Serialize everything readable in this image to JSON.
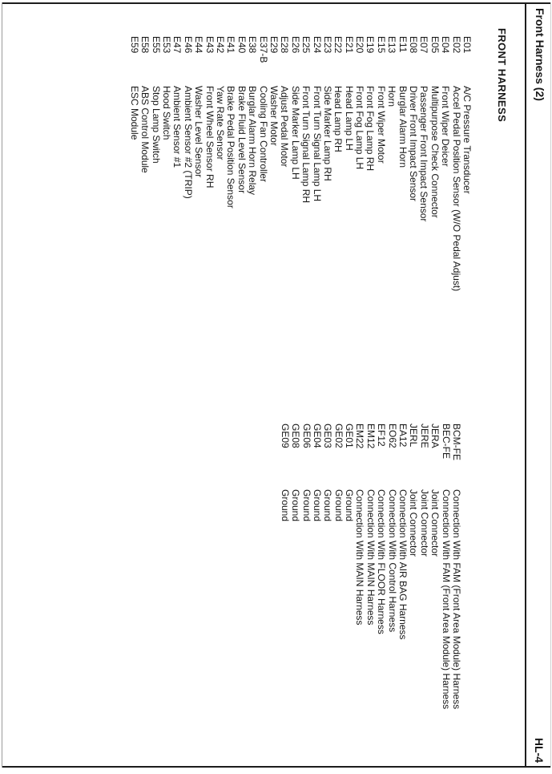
{
  "header": {
    "title": "Front Harness (2)",
    "page_number": "HL-4"
  },
  "content": {
    "section_title": "FRONT HARNESS",
    "front_harness_rows": [
      {
        "code": "E01",
        "name": "A/C Pressure Transducer"
      },
      {
        "code": "E02",
        "name": "Accel Pedal Position Sensor (W/O Pedal Adjust)"
      },
      {
        "code": "E04",
        "name": "Front Wiper Deicer"
      },
      {
        "code": "E05",
        "name": "Multipurpose Check Connector"
      },
      {
        "code": "E07",
        "name": "Passenger Front Impact Sensor"
      },
      {
        "code": "E08",
        "name": "Driver Front Impact Sensor"
      },
      {
        "code": "E11",
        "name": "Burglar Alarm Horn"
      },
      {
        "code": "E13",
        "name": "Horn"
      },
      {
        "code": "E15",
        "name": "Front Wiper Motor"
      },
      {
        "code": "E19",
        "name": "Front Fog Lamp RH"
      },
      {
        "code": "E20",
        "name": "Front Fog Lamp LH"
      },
      {
        "code": "E21",
        "name": "Head Lamp LH"
      },
      {
        "code": "E22",
        "name": "Head Lamp RH"
      },
      {
        "code": "E23",
        "name": "Side Marker Lamp RH"
      },
      {
        "code": "E24",
        "name": "Front Turn Signal Lamp LH"
      },
      {
        "code": "E25",
        "name": "Front Turn Signal Lamp RH"
      },
      {
        "code": "E26",
        "name": "Side Marker Lamp LH"
      },
      {
        "code": "E28",
        "name": "Adjust Pedal Motor"
      },
      {
        "code": "E29",
        "name": "Washer Motor"
      },
      {
        "code": "E37-B",
        "name": "Cooling Fan Controller"
      },
      {
        "code": "E38",
        "name": "Burglar Alarm Horn Relay"
      },
      {
        "code": "E40",
        "name": "Brake Fluid Level Sensor"
      },
      {
        "code": "E41",
        "name": "Brake Pedal Position Sensor"
      },
      {
        "code": "E42",
        "name": "Yaw Rate Sensor"
      },
      {
        "code": "E43",
        "name": "Front Wheel Sensor RH"
      },
      {
        "code": "E44",
        "name": "Washer Level Sensor"
      },
      {
        "code": "E46",
        "name": "Ambient Sensor #2 (TRIP)"
      },
      {
        "code": "E47",
        "name": "Ambient Sensor #1"
      },
      {
        "code": "E53",
        "name": "Hood Switch"
      },
      {
        "code": "E55",
        "name": "Stop Lamp Switch"
      },
      {
        "code": "E58",
        "name": "ABS Control Module"
      },
      {
        "code": "E59",
        "name": "ESC Module"
      }
    ],
    "connection_rows": [
      {
        "code": "BCM-FE",
        "name": "Connection With FAM (Front Area Module) Harness"
      },
      {
        "code": "BEC-FE",
        "name": "Connection With FAM (Front Area Module) Harness"
      },
      {
        "code": "JERA",
        "name": "Joint Connector"
      },
      {
        "code": "JERE",
        "name": "Joint Connector"
      },
      {
        "code": "JERL",
        "name": "Joint Connector"
      },
      {
        "code": "EA12",
        "name": "Connection With AIR BAG Harness"
      },
      {
        "code": "EO62",
        "name": "Connection With Control Harness"
      },
      {
        "code": "EF12",
        "name": "Connection With FLOOR Harness"
      },
      {
        "code": "EM12",
        "name": "Connection With MAIN Harness"
      },
      {
        "code": "EM22",
        "name": "Connection With MAIN Harness"
      },
      {
        "code": "GE01",
        "name": "Ground"
      },
      {
        "code": "GE02",
        "name": "Ground"
      },
      {
        "code": "GE03",
        "name": "Ground"
      },
      {
        "code": "GE04",
        "name": "Ground"
      },
      {
        "code": "GE06",
        "name": "Ground"
      },
      {
        "code": "GE08",
        "name": "Ground"
      },
      {
        "code": "GE09",
        "name": "Ground"
      }
    ]
  }
}
